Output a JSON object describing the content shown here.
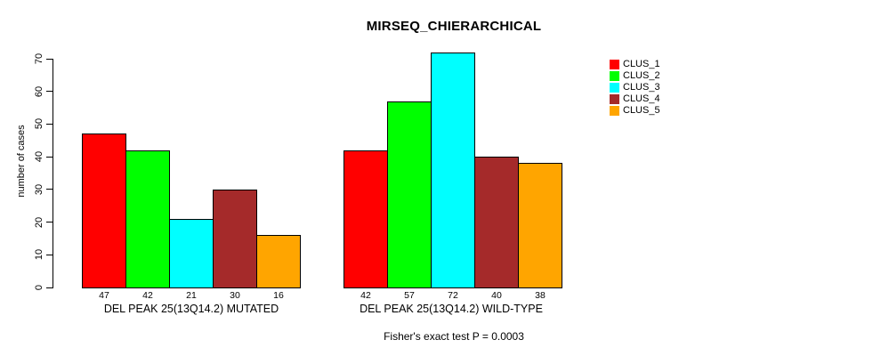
{
  "chart_data": {
    "type": "bar",
    "title": "MIRSEQ_CHIERARCHICAL",
    "xlabel": "",
    "ylabel": "number of cases",
    "ylim": [
      0,
      70
    ],
    "yticks": [
      0,
      10,
      20,
      30,
      40,
      50,
      60,
      70
    ],
    "grid": false,
    "legend_position": "top-right",
    "categories": [
      "DEL PEAK 25(13Q14.2) MUTATED",
      "DEL PEAK 25(13Q14.2) WILD-TYPE"
    ],
    "series": [
      {
        "name": "CLUS_1",
        "color": "#FF0000",
        "values": [
          47,
          42
        ]
      },
      {
        "name": "CLUS_2",
        "color": "#00FF00",
        "values": [
          42,
          57
        ]
      },
      {
        "name": "CLUS_3",
        "color": "#00FFFF",
        "values": [
          21,
          72
        ]
      },
      {
        "name": "CLUS_4",
        "color": "#A52A2A",
        "values": [
          30,
          40
        ]
      },
      {
        "name": "CLUS_5",
        "color": "#FFA500",
        "values": [
          16,
          38
        ]
      }
    ],
    "bar_value_labels": [
      [
        47,
        42,
        21,
        30,
        16
      ],
      [
        42,
        57,
        72,
        40,
        38
      ]
    ],
    "bar_border_color": "#000000",
    "annotation": "Fisher's exact test P = 0.0003"
  }
}
